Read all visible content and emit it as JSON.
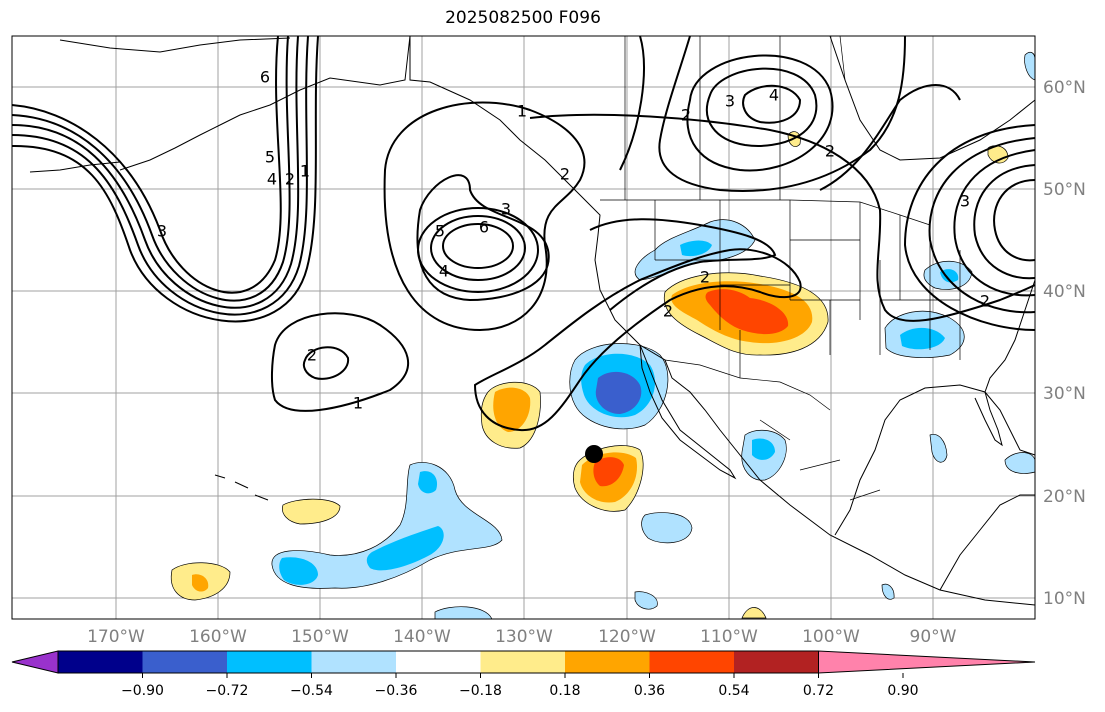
{
  "title": "2025082500 F096",
  "lon_ticks": [
    "170°W",
    "160°W",
    "150°W",
    "140°W",
    "130°W",
    "120°W",
    "110°W",
    "100°W",
    "90°W"
  ],
  "lat_ticks": [
    "60°N",
    "50°N",
    "40°N",
    "30°N",
    "20°N",
    "10°N"
  ],
  "colorbar": {
    "labels": [
      "−0.90",
      "−0.72",
      "−0.54",
      "−0.36",
      "−0.18",
      "0.18",
      "0.36",
      "0.54",
      "0.72",
      "0.90"
    ],
    "colors": [
      "#9932cc",
      "#00008b",
      "#3a5fcd",
      "#00bfff",
      "#b0e2ff",
      "#ffffff",
      "#ffec8b",
      "#ffa500",
      "#ff4500",
      "#b22222",
      "#ff82ab"
    ]
  },
  "contour_labels": [
    "1",
    "2",
    "3",
    "4",
    "5",
    "6"
  ],
  "marker": {
    "lon": "123°W",
    "lat": "24°N",
    "icon": "black-dot"
  }
}
